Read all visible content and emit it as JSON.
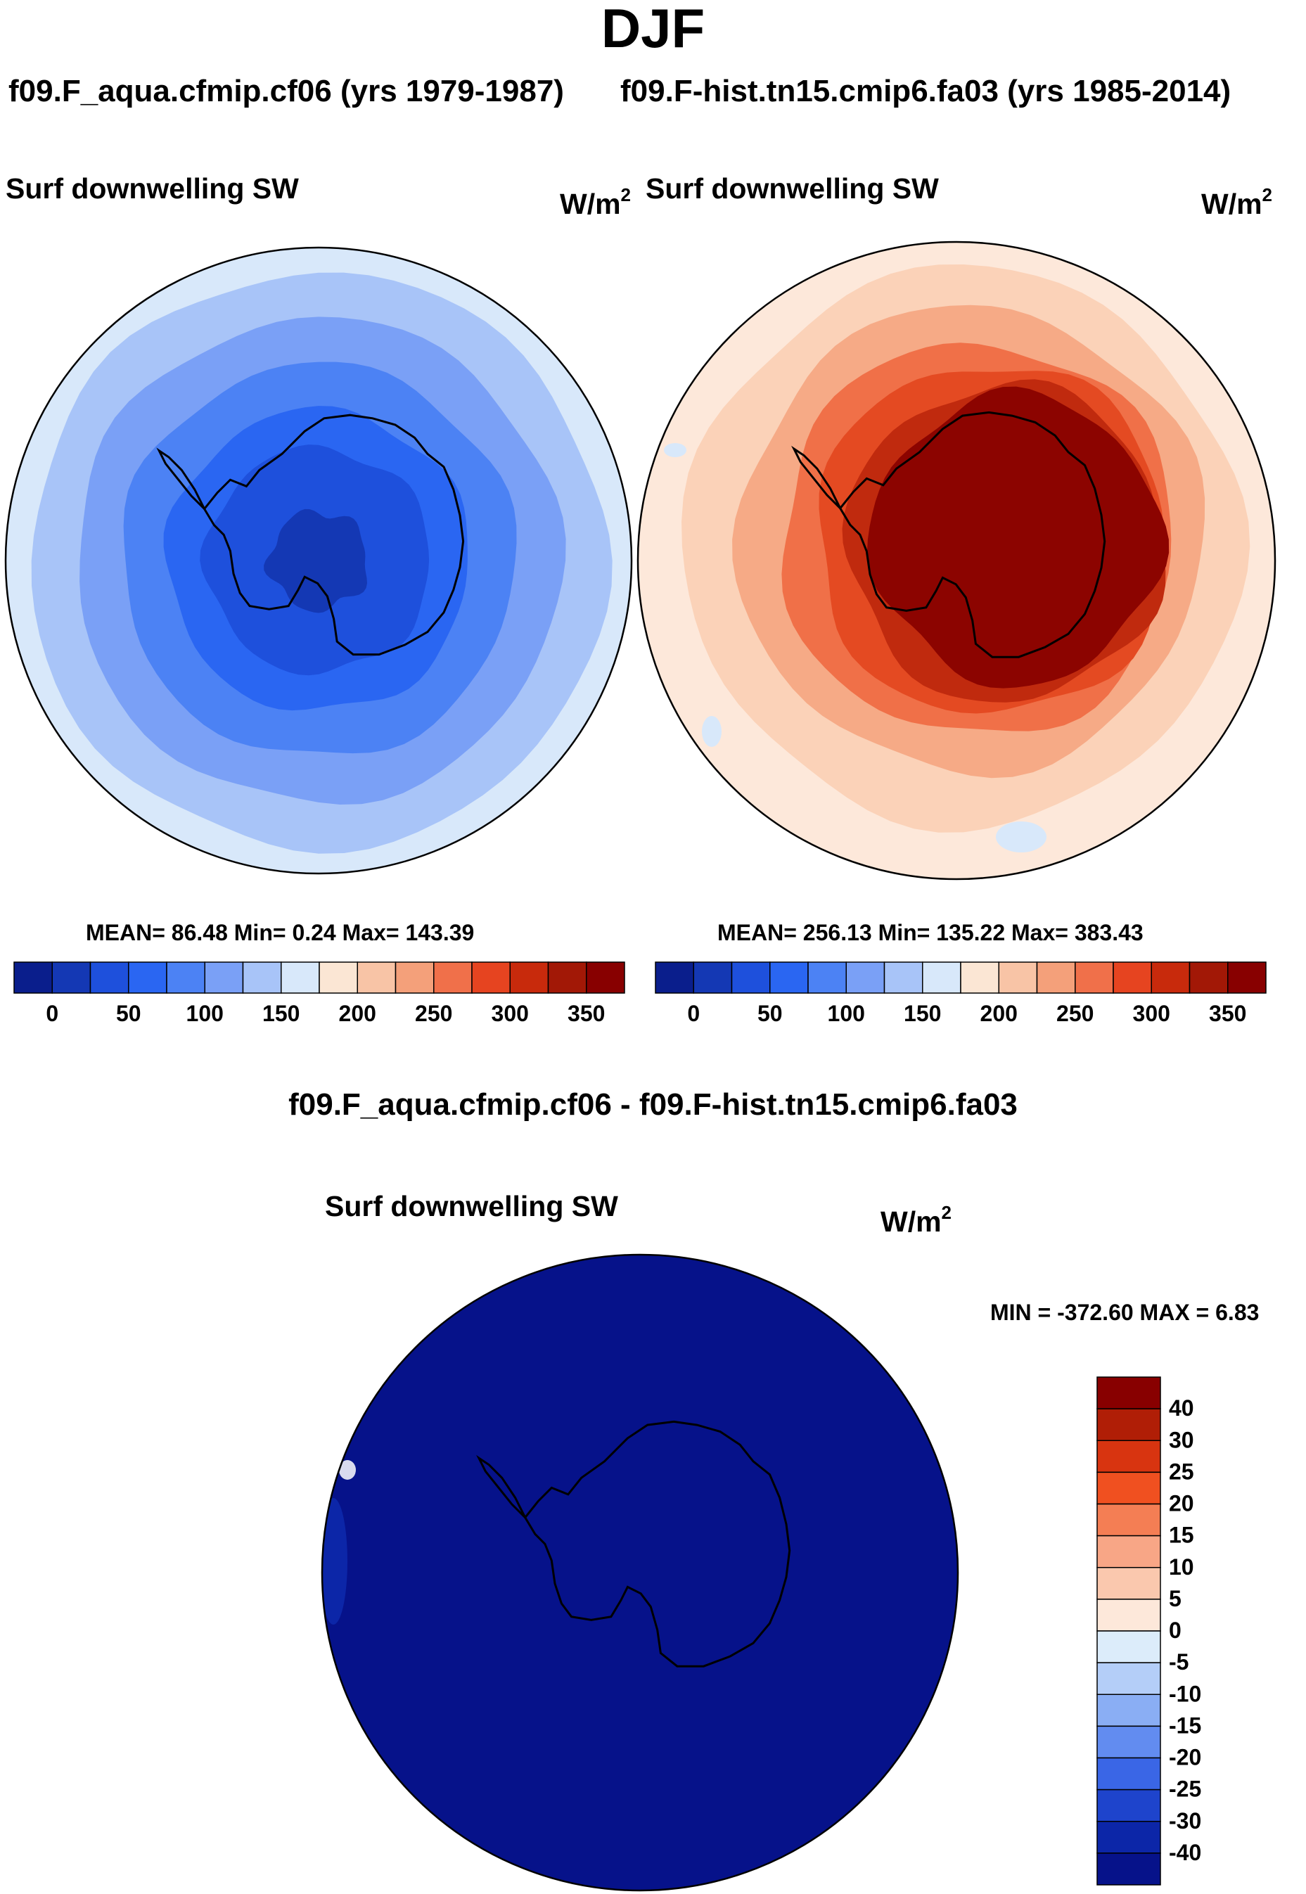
{
  "season": "DJF",
  "panels": [
    {
      "case_title": "f09.F_aqua.cfmip.cf06 (yrs 1979-1987)",
      "variable": "Surf downwelling SW",
      "units": "W/m",
      "units_exp": "2",
      "stats": "MEAN=  86.48  Min=    0.24  Max= 143.39"
    },
    {
      "case_title": "f09.F-hist.tn15.cmip6.fa03 (yrs 1985-2014)",
      "variable": "Surf downwelling SW",
      "units": "W/m",
      "units_exp": "2",
      "stats": "MEAN= 256.13  Min= 135.22  Max= 383.43"
    }
  ],
  "diff": {
    "title": "f09.F_aqua.cfmip.cf06 - f09.F-hist.tn15.cmip6.fa03",
    "variable": "Surf downwelling SW",
    "units": "W/m",
    "units_exp": "2",
    "stats": "MIN = -372.60 MAX =   6.83"
  },
  "chart_data": [
    {
      "type": "heatmap",
      "title": "Surf downwelling SW",
      "subtitle": "f09.F_aqua.cfmip.cf06 (yrs 1979-1987)",
      "units": "W/m2",
      "projection": "south polar stereographic",
      "mean": 86.48,
      "min": 0.24,
      "max": 143.39,
      "colorbar": {
        "orientation": "horizontal",
        "tick_labels": [
          "0",
          "50",
          "100",
          "150",
          "200",
          "250",
          "300",
          "350"
        ],
        "levels": [
          0,
          25,
          50,
          75,
          100,
          125,
          150,
          175,
          200,
          225,
          250,
          275,
          300,
          325,
          350
        ],
        "colors": [
          "#0a1e8c",
          "#1438b4",
          "#1e50dc",
          "#2a66f2",
          "#4c82f4",
          "#7aa0f6",
          "#a8c4f8",
          "#d8e8fa",
          "#fbe6d4",
          "#f8c4a6",
          "#f4a07a",
          "#f0704a",
          "#e64420",
          "#c82a0c",
          "#a21806",
          "#880000"
        ]
      },
      "rings_outer_to_inner_values": [
        150,
        125,
        100,
        75,
        50,
        25,
        0
      ]
    },
    {
      "type": "heatmap",
      "title": "Surf downwelling SW",
      "subtitle": "f09.F-hist.tn15.cmip6.fa03 (yrs 1985-2014)",
      "units": "W/m2",
      "projection": "south polar stereographic",
      "mean": 256.13,
      "min": 135.22,
      "max": 383.43,
      "colorbar": {
        "orientation": "horizontal",
        "tick_labels": [
          "0",
          "50",
          "100",
          "150",
          "200",
          "250",
          "300",
          "350"
        ],
        "levels": [
          0,
          25,
          50,
          75,
          100,
          125,
          150,
          175,
          200,
          225,
          250,
          275,
          300,
          325,
          350
        ],
        "colors": [
          "#0a1e8c",
          "#1438b4",
          "#1e50dc",
          "#2a66f2",
          "#4c82f4",
          "#7aa0f6",
          "#a8c4f8",
          "#d8e8fa",
          "#fbe6d4",
          "#f8c4a6",
          "#f4a07a",
          "#f0704a",
          "#e64420",
          "#c82a0c",
          "#a21806",
          "#880000"
        ]
      }
    },
    {
      "type": "heatmap",
      "title": "Surf downwelling SW",
      "subtitle": "f09.F_aqua.cfmip.cf06 - f09.F-hist.tn15.cmip6.fa03",
      "units": "W/m2",
      "projection": "south polar stereographic",
      "min": -372.6,
      "max": 6.83,
      "colorbar": {
        "orientation": "vertical",
        "tick_labels": [
          "40",
          "30",
          "25",
          "20",
          "15",
          "10",
          "5",
          "0",
          "-5",
          "-10",
          "-15",
          "-20",
          "-25",
          "-30",
          "-40"
        ],
        "levels": [
          40,
          30,
          25,
          20,
          15,
          10,
          5,
          0,
          -5,
          -10,
          -15,
          -20,
          -25,
          -30,
          -40
        ],
        "colors_top_to_bottom": [
          "#880000",
          "#b01e06",
          "#d83410",
          "#f05020",
          "#f47e54",
          "#f8a686",
          "#fac8ae",
          "#fde8da",
          "#dcecfa",
          "#b4cef8",
          "#8aaef4",
          "#628cf0",
          "#3a66e6",
          "#1e44cc",
          "#0c26a8",
          "#06128a"
        ]
      }
    }
  ]
}
